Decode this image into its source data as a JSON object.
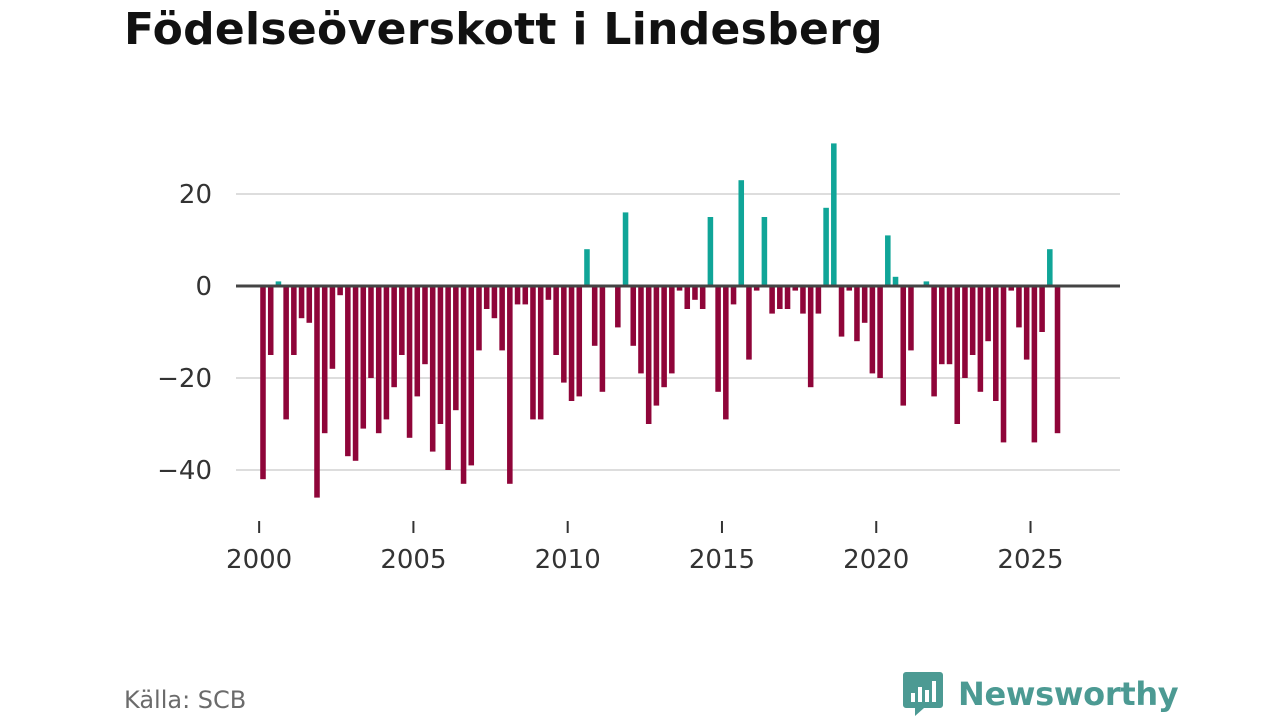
{
  "title": "Födelseöverskott i Lindesberg",
  "source": "Källa: SCB",
  "brand": {
    "name": "Newsworthy",
    "logo_icon": "bar-chart-speech-bubble-icon"
  },
  "colors": {
    "positive": "#10a598",
    "negative": "#8f0539",
    "grid": "#dddddd",
    "zero": "#444444",
    "brand": "#4c9a93"
  },
  "chart_data": {
    "type": "bar",
    "title": "Födelseöverskott i Lindesberg",
    "xlabel": "",
    "ylabel": "",
    "ylim": [
      -50,
      35
    ],
    "xlim": [
      1999.25,
      2027.9
    ],
    "y_ticks": [
      20,
      0,
      -20,
      -40
    ],
    "y_tick_labels": [
      "20",
      "0",
      "−20",
      "−40"
    ],
    "x_ticks": [
      2000,
      2005,
      2010,
      2015,
      2020,
      2025
    ],
    "x_tick_labels": [
      "2000",
      "2005",
      "2010",
      "2015",
      "2020",
      "2025"
    ],
    "grid": true,
    "frequency": "quarterly",
    "start": 2000.0,
    "step": 0.25,
    "values": [
      -42,
      -15,
      1,
      -29,
      -15,
      -7,
      -8,
      -46,
      -32,
      -18,
      -2,
      -37,
      -38,
      -31,
      -20,
      -32,
      -29,
      -22,
      -15,
      -33,
      -24,
      -17,
      -36,
      -30,
      -40,
      -27,
      -43,
      -39,
      -14,
      -5,
      -7,
      -14,
      -43,
      -4,
      -4,
      -29,
      -29,
      -3,
      -15,
      -21,
      -25,
      -24,
      8,
      -13,
      -23,
      0,
      -9,
      16,
      -13,
      -19,
      -30,
      -26,
      -22,
      -19,
      -1,
      -5,
      -3,
      -5,
      15,
      -23,
      -29,
      -4,
      23,
      -16,
      -1,
      15,
      -6,
      -5,
      -5,
      -1,
      -6,
      -22,
      -6,
      17,
      31,
      -11,
      -1,
      -12,
      -8,
      -19,
      -20,
      11,
      2,
      -26,
      -14,
      0,
      1,
      -24,
      -17,
      -17,
      -30,
      -20,
      -15,
      -23,
      -12,
      -25,
      -34,
      -1,
      -9,
      -16,
      -34,
      -10,
      8,
      -32
    ]
  }
}
